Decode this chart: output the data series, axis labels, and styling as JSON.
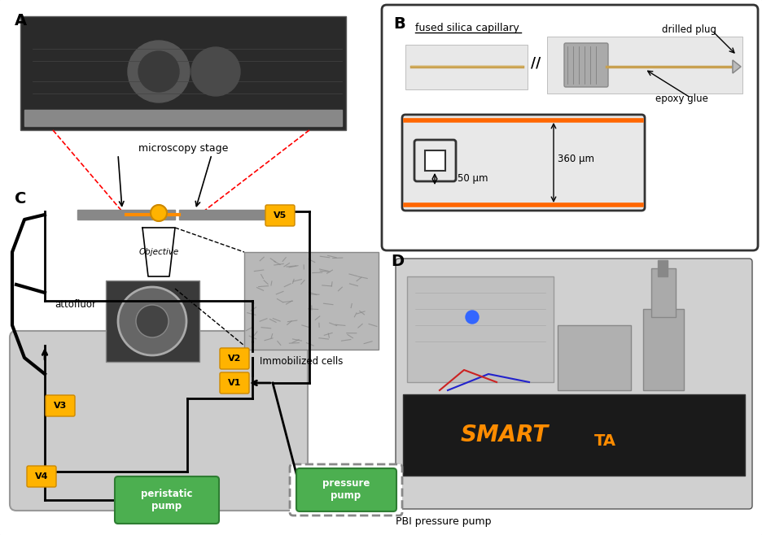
{
  "bg_color": "#ffffff",
  "border_color": "#333333",
  "panel_labels": [
    "A",
    "B",
    "C",
    "D"
  ],
  "valve_color": "#FFB300",
  "valve_text_color": "#000000",
  "pump_color": "#4CAF50",
  "pump_text_color": "#ffffff",
  "gray_box_color": "#C8C8C8",
  "capillary_orange": "#FF6600",
  "label_A": "A",
  "label_B": "B",
  "label_C": "C",
  "label_D": "D",
  "text_microscopy_stage": "microscopy stage",
  "text_objective": "Objective",
  "text_attofluor": "attofluor",
  "text_immobilized": "Immobilized cells",
  "text_peristatic": "peristatic\npump",
  "text_pressure": "pressure\npump",
  "text_fused_silica": "fused silica capillary",
  "text_drilled_plug": "drilled plug",
  "text_epoxy_glue": "epoxy glue",
  "text_360um": "360 μm",
  "text_50um": "50 μm",
  "text_pbi": "PBI pressure pump",
  "valve_labels": [
    "V1",
    "V2",
    "V3",
    "V4",
    "V5"
  ]
}
